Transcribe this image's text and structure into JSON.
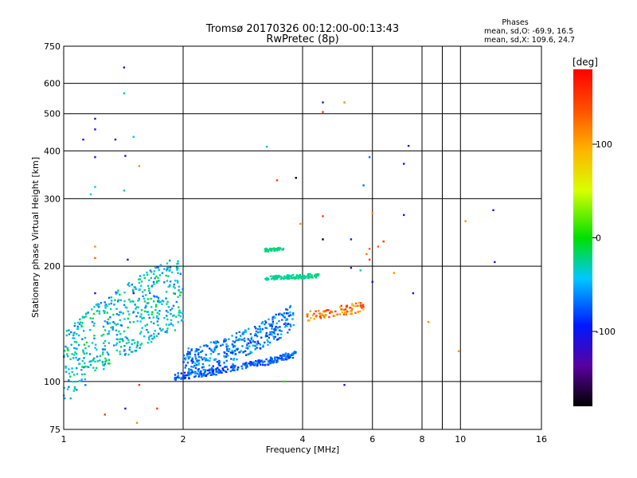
{
  "header": {
    "title_line1": "Tromsø 20170326 00:12:00-00:13:43",
    "title_line2": "RwPretec (8p)",
    "phases_label": "Phases",
    "stats_o": "mean, sd,O: -69.9, 16.5",
    "stats_x": "mean, sd,X: 109.6, 24.7"
  },
  "colorbar": {
    "label": "[deg]",
    "ticks": [
      "100",
      "0",
      "-100"
    ],
    "tick_values": [
      100,
      0,
      -100
    ],
    "range": [
      -180,
      180
    ]
  },
  "chart_data": {
    "type": "scatter",
    "title": "Tromsø 20170326 00:12:00-00:13:43",
    "subtitle": "RwPretec (8p)",
    "xlabel": "Frequency [MHz]",
    "ylabel": "Stationary phase Virtual Height [km]",
    "x_scale": "log",
    "y_scale": "log",
    "xlim": [
      1,
      16
    ],
    "ylim": [
      75,
      750
    ],
    "x_ticks": [
      1,
      2,
      4,
      6,
      8,
      10,
      16
    ],
    "x_minor_ticks": [
      9
    ],
    "y_ticks": [
      75,
      100,
      200,
      300,
      400,
      500,
      600,
      750
    ],
    "grid": true,
    "colorbar_range_deg": [
      -180,
      180
    ],
    "traces": [
      {
        "name": "O-trace lower",
        "x": [
          1.9,
          2.1,
          2.4,
          2.7,
          3.0,
          3.3,
          3.6,
          3.85
        ],
        "y": [
          103,
          104,
          106,
          109,
          111,
          113,
          116,
          118
        ],
        "phase": -75
      },
      {
        "name": "O-trace upper",
        "x": [
          2.0,
          2.3,
          2.6,
          2.9,
          3.2,
          3.5,
          3.8
        ],
        "y": [
          112,
          116,
          121,
          127,
          133,
          140,
          148
        ],
        "phase": -65
      },
      {
        "name": "low-frequency scatter",
        "x": [
          1.0,
          1.2,
          1.45,
          1.7,
          2.0
        ],
        "y": [
          108,
          128,
          145,
          160,
          172
        ],
        "phase": -40
      },
      {
        "name": "F2 trace",
        "x": [
          3.2,
          3.6,
          4.0,
          4.4
        ],
        "y": [
          186,
          187,
          188,
          189
        ],
        "phase": -25
      },
      {
        "name": "F2 upper trace",
        "x": [
          3.2,
          3.4,
          3.6
        ],
        "y": [
          220,
          221,
          223
        ],
        "phase": -20
      },
      {
        "name": "X-trace",
        "x": [
          4.1,
          4.5,
          5.0,
          5.4,
          5.7
        ],
        "y": [
          148,
          151,
          153,
          155,
          158
        ],
        "phase": 120
      }
    ],
    "points": [
      {
        "x": 1.42,
        "y": 660,
        "phase": -110
      },
      {
        "x": 1.42,
        "y": 565,
        "phase": -30
      },
      {
        "x": 1.2,
        "y": 485,
        "phase": -110
      },
      {
        "x": 1.2,
        "y": 455,
        "phase": -110
      },
      {
        "x": 1.12,
        "y": 428,
        "phase": -110
      },
      {
        "x": 1.35,
        "y": 428,
        "phase": -110
      },
      {
        "x": 1.5,
        "y": 435,
        "phase": -40
      },
      {
        "x": 1.2,
        "y": 385,
        "phase": -110
      },
      {
        "x": 1.43,
        "y": 388,
        "phase": -110
      },
      {
        "x": 1.55,
        "y": 365,
        "phase": 110
      },
      {
        "x": 1.2,
        "y": 322,
        "phase": -40
      },
      {
        "x": 1.17,
        "y": 308,
        "phase": -40
      },
      {
        "x": 1.42,
        "y": 315,
        "phase": -30
      },
      {
        "x": 1.2,
        "y": 225,
        "phase": 110
      },
      {
        "x": 1.2,
        "y": 210,
        "phase": 130
      },
      {
        "x": 1.45,
        "y": 208,
        "phase": -110
      },
      {
        "x": 1.5,
        "y": 170,
        "phase": -110
      },
      {
        "x": 1.2,
        "y": 170,
        "phase": -110
      },
      {
        "x": 1.27,
        "y": 82,
        "phase": 150
      },
      {
        "x": 1.43,
        "y": 85,
        "phase": -110
      },
      {
        "x": 1.53,
        "y": 78,
        "phase": 110
      },
      {
        "x": 1.72,
        "y": 85,
        "phase": 150
      },
      {
        "x": 1.55,
        "y": 98,
        "phase": 150
      },
      {
        "x": 3.25,
        "y": 410,
        "phase": -30
      },
      {
        "x": 3.45,
        "y": 335,
        "phase": 150
      },
      {
        "x": 3.85,
        "y": 340,
        "phase": -180
      },
      {
        "x": 4.5,
        "y": 535,
        "phase": -110
      },
      {
        "x": 4.5,
        "y": 505,
        "phase": 150
      },
      {
        "x": 5.1,
        "y": 535,
        "phase": 110
      },
      {
        "x": 4.5,
        "y": 270,
        "phase": 150
      },
      {
        "x": 4.5,
        "y": 235,
        "phase": -180
      },
      {
        "x": 3.95,
        "y": 258,
        "phase": 110
      },
      {
        "x": 5.3,
        "y": 235,
        "phase": -90
      },
      {
        "x": 5.9,
        "y": 385,
        "phase": -70
      },
      {
        "x": 5.7,
        "y": 325,
        "phase": -70
      },
      {
        "x": 6.0,
        "y": 275,
        "phase": 110
      },
      {
        "x": 6.4,
        "y": 232,
        "phase": 150
      },
      {
        "x": 6.2,
        "y": 225,
        "phase": 130
      },
      {
        "x": 5.9,
        "y": 222,
        "phase": 140
      },
      {
        "x": 5.8,
        "y": 215,
        "phase": 120
      },
      {
        "x": 5.9,
        "y": 208,
        "phase": 150
      },
      {
        "x": 5.6,
        "y": 195,
        "phase": -30
      },
      {
        "x": 5.3,
        "y": 198,
        "phase": -110
      },
      {
        "x": 6.0,
        "y": 182,
        "phase": -100
      },
      {
        "x": 6.8,
        "y": 192,
        "phase": 110
      },
      {
        "x": 7.2,
        "y": 370,
        "phase": -110
      },
      {
        "x": 7.4,
        "y": 412,
        "phase": -110
      },
      {
        "x": 7.2,
        "y": 272,
        "phase": -110
      },
      {
        "x": 7.6,
        "y": 170,
        "phase": -110
      },
      {
        "x": 8.3,
        "y": 143,
        "phase": 110
      },
      {
        "x": 9.9,
        "y": 120,
        "phase": 110
      },
      {
        "x": 10.3,
        "y": 262,
        "phase": 110
      },
      {
        "x": 12.1,
        "y": 280,
        "phase": -110
      },
      {
        "x": 12.2,
        "y": 205,
        "phase": -110
      },
      {
        "x": 5.1,
        "y": 98,
        "phase": -110
      },
      {
        "x": 3.6,
        "y": 100,
        "phase": 10
      }
    ]
  }
}
